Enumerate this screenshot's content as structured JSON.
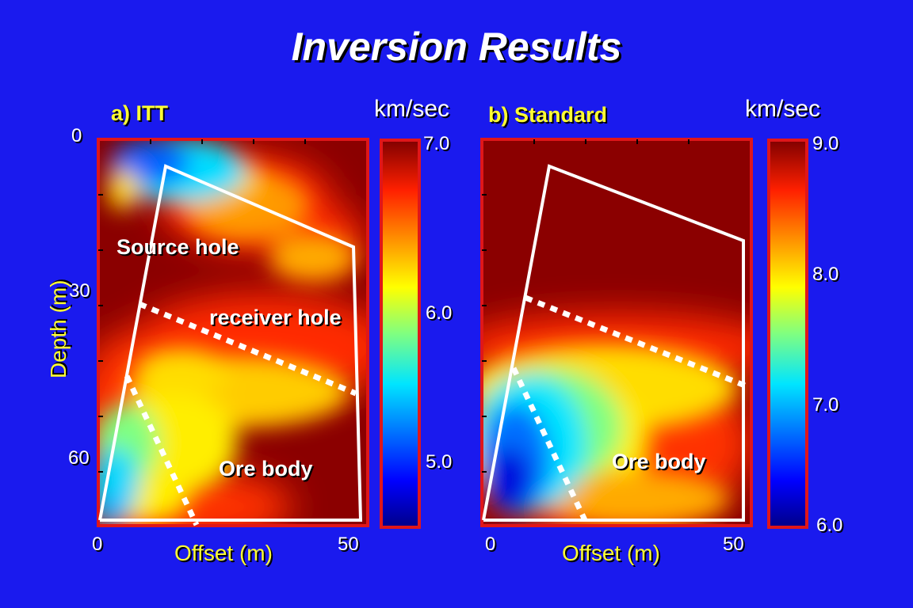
{
  "page_title": "Inversion Results",
  "colors": {
    "background": "#1a1aee",
    "frame": "#e0161a",
    "label_yellow": "#ffff33",
    "overlay_white": "#ffffff"
  },
  "chart_data": [
    {
      "type": "heatmap",
      "panel_label": "a) ITT",
      "xlabel": "Offset (m)",
      "ylabel": "Depth (m)",
      "x_ticks": [
        "0",
        "50"
      ],
      "y_ticks": [
        "0",
        "30",
        "60"
      ],
      "xlim": [
        0,
        52
      ],
      "ylim": [
        0,
        75
      ],
      "colorbar": {
        "unit": "km/sec",
        "ticks": [
          "7.0",
          "6.0",
          "5.0"
        ],
        "range": [
          4.6,
          7.0
        ]
      },
      "annotations": [
        "Source hole",
        "receiver hole",
        "Ore body"
      ]
    },
    {
      "type": "heatmap",
      "panel_label": "b) Standard",
      "xlabel": "Offset (m)",
      "x_ticks": [
        "0",
        "50"
      ],
      "xlim": [
        0,
        52
      ],
      "ylim": [
        0,
        75
      ],
      "colorbar": {
        "unit": "km/sec",
        "ticks": [
          "9.0",
          "8.0",
          "7.0",
          "6.0"
        ],
        "range": [
          6.0,
          9.0
        ]
      },
      "annotations": [
        "Ore body"
      ]
    }
  ]
}
